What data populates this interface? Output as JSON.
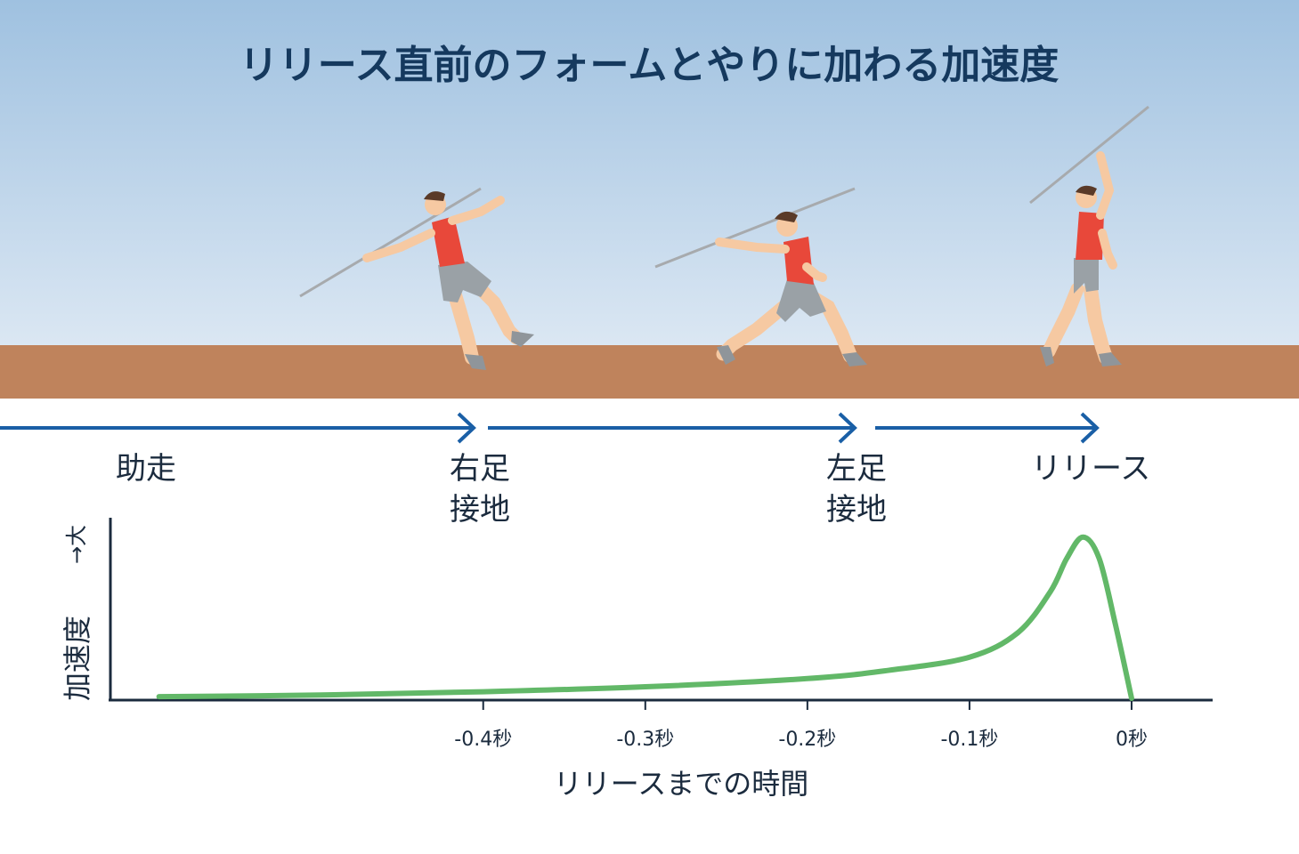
{
  "title": "リリース直前のフォームとやりに加わる加速度",
  "colors": {
    "sky_top": "#9fc1e0",
    "sky_bottom": "#dbe7f3",
    "ground": "#bf835c",
    "arrow": "#1a5fa6",
    "curve": "#62b868",
    "axis": "#1b2b3e",
    "shirt": "#e8483a",
    "shorts": "#9aa1a6",
    "skin": "#f6c9a2",
    "javelin": "#a7aaad"
  },
  "phases": [
    {
      "lines": [
        "助走"
      ]
    },
    {
      "lines": [
        "右足",
        "接地"
      ]
    },
    {
      "lines": [
        "左足",
        "接地"
      ]
    },
    {
      "lines": [
        "リリース"
      ]
    }
  ],
  "chart_data": {
    "type": "line",
    "xlabel": "リリースまでの時間",
    "ylabel": "加速度",
    "y_direction_label": "→大",
    "x_tick_labels": [
      "-0.4秒",
      "-0.3秒",
      "-0.2秒",
      "-0.1秒",
      "0秒"
    ],
    "x_ticks": [
      -0.4,
      -0.3,
      -0.2,
      -0.1,
      0
    ],
    "xlim": [
      -0.63,
      0.05
    ],
    "ylim": [
      0,
      1
    ],
    "series": [
      {
        "x": [
          -0.6,
          -0.5,
          -0.4,
          -0.3,
          -0.2,
          -0.15,
          -0.1,
          -0.07,
          -0.05,
          -0.04,
          -0.03,
          -0.02,
          -0.01,
          0.0
        ],
        "y": [
          0.01,
          0.02,
          0.04,
          0.07,
          0.12,
          0.17,
          0.25,
          0.4,
          0.65,
          0.85,
          0.98,
          0.85,
          0.45,
          0.0
        ]
      }
    ]
  }
}
